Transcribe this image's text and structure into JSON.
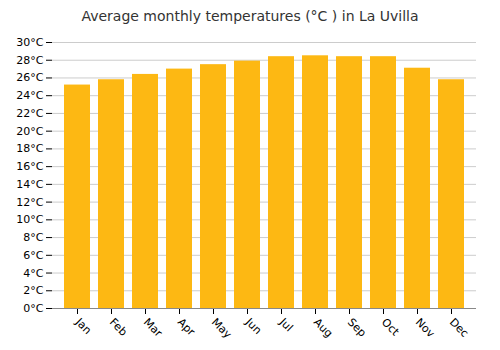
{
  "chart_data": {
    "type": "bar",
    "title": "Average monthly temperatures (°C ) in La Uvilla",
    "categories": [
      "Jan",
      "Feb",
      "Mar",
      "Apr",
      "May",
      "Jun",
      "Jul",
      "Aug",
      "Sep",
      "Oct",
      "Nov",
      "Dec"
    ],
    "values": [
      25.2,
      25.8,
      26.4,
      27.0,
      27.5,
      27.9,
      28.4,
      28.5,
      28.4,
      28.4,
      27.1,
      25.8
    ],
    "color": "#FDB813",
    "ylim": [
      0,
      30
    ],
    "yticks": [
      {
        "value": 0,
        "label": "0°C"
      },
      {
        "value": 2,
        "label": "2°C"
      },
      {
        "value": 4,
        "label": "4°C"
      },
      {
        "value": 6,
        "label": "6°C"
      },
      {
        "value": 8,
        "label": "8°C"
      },
      {
        "value": 10,
        "label": "10°C"
      },
      {
        "value": 12,
        "label": "12°C"
      },
      {
        "value": 14,
        "label": "14°C"
      },
      {
        "value": 16,
        "label": "16°C"
      },
      {
        "value": 18,
        "label": "18°C"
      },
      {
        "value": 20,
        "label": "20°C"
      },
      {
        "value": 22,
        "label": "22°C"
      },
      {
        "value": 24,
        "label": "24°C"
      },
      {
        "value": 26,
        "label": "26°C"
      },
      {
        "value": 28,
        "label": "28°C"
      },
      {
        "value": 30,
        "label": "30°C"
      }
    ],
    "grid": true
  }
}
